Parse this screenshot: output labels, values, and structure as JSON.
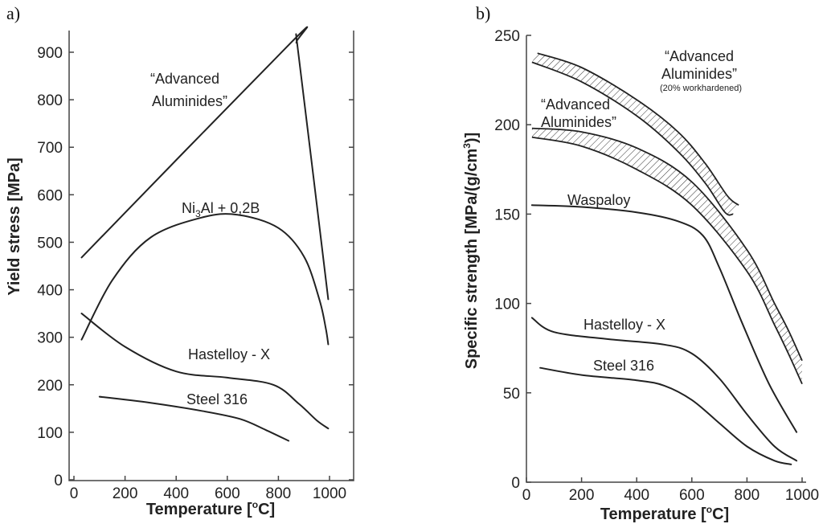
{
  "chart_data": [
    {
      "type": "line",
      "panel_label": "a)",
      "xlabel": "Temperature [°C]",
      "xlabel_main": "Temperature [",
      "xlabel_unit": "C]",
      "ylabel": "Yield stress [MPa]",
      "xlim": [
        0,
        1050
      ],
      "ylim": [
        0,
        950
      ],
      "xticks": [
        0,
        200,
        400,
        600,
        800,
        1000
      ],
      "yticks": [
        0,
        100,
        200,
        300,
        400,
        500,
        600,
        700,
        800,
        900
      ],
      "series": [
        {
          "name": "Advanced Aluminides",
          "label_lines": [
            "“Advanced",
            "Aluminides”"
          ],
          "points": [
            [
              30,
              468
            ],
            [
              845,
              918
            ],
            [
              870,
              920
            ],
            [
              880,
              890
            ],
            [
              995,
              380
            ]
          ]
        },
        {
          "name": "Ni3Al + 0,2B",
          "label_main": "Ni",
          "label_sub": "3",
          "label_rest": "Al + 0,2B",
          "points": [
            [
              30,
              295
            ],
            [
              150,
              420
            ],
            [
              300,
              510
            ],
            [
              500,
              552
            ],
            [
              640,
              558
            ],
            [
              800,
              530
            ],
            [
              900,
              470
            ],
            [
              960,
              380
            ],
            [
              985,
              320
            ],
            [
              995,
              285
            ]
          ]
        },
        {
          "name": "Hastelloy - X",
          "points": [
            [
              30,
              350
            ],
            [
              200,
              280
            ],
            [
              400,
              228
            ],
            [
              600,
              215
            ],
            [
              780,
              200
            ],
            [
              880,
              160
            ],
            [
              950,
              125
            ],
            [
              995,
              108
            ]
          ]
        },
        {
          "name": "Steel 316",
          "points": [
            [
              100,
              175
            ],
            [
              300,
              162
            ],
            [
              500,
              145
            ],
            [
              650,
              128
            ],
            [
              750,
              105
            ],
            [
              840,
              82
            ]
          ]
        }
      ]
    },
    {
      "type": "line",
      "panel_label": "b)",
      "xlabel": "Temperature [°C]",
      "xlabel_main": "Temperature [",
      "xlabel_unit": "C]",
      "ylabel": "Specific strength [MPa/(g/cm³)]",
      "ylabel_main": "Specific strength [MPa/(g/cm",
      "ylabel_sup": "3",
      "ylabel_end": ")]",
      "xlim": [
        0,
        1000
      ],
      "ylim": [
        0,
        250
      ],
      "xticks": [
        0,
        200,
        400,
        600,
        800,
        1000
      ],
      "yticks": [
        0,
        50,
        100,
        150,
        200,
        250
      ],
      "bands": [
        {
          "name": "Advanced Aluminides (20% workhardened)",
          "label_lines": [
            "“Advanced",
            "Aluminides”"
          ],
          "note": "(20% workhardened)",
          "upper": [
            [
              40,
              240
            ],
            [
              200,
              232
            ],
            [
              400,
              214
            ],
            [
              550,
              196
            ],
            [
              650,
              178
            ],
            [
              730,
              160
            ],
            [
              770,
              155
            ]
          ],
          "lower": [
            [
              20,
              235
            ],
            [
              200,
              224
            ],
            [
              400,
              205
            ],
            [
              550,
              185
            ],
            [
              650,
              167
            ],
            [
              720,
              151
            ],
            [
              750,
              150
            ]
          ]
        },
        {
          "name": "Advanced Aluminides",
          "label_lines": [
            "“Advanced",
            "Aluminides”"
          ],
          "upper": [
            [
              20,
              198
            ],
            [
              200,
              196
            ],
            [
              400,
              187
            ],
            [
              600,
              168
            ],
            [
              800,
              130
            ],
            [
              900,
              100
            ],
            [
              950,
              85
            ],
            [
              1000,
              68
            ]
          ],
          "lower": [
            [
              20,
              193
            ],
            [
              200,
              188
            ],
            [
              400,
              175
            ],
            [
              600,
              155
            ],
            [
              800,
              118
            ],
            [
              900,
              88
            ],
            [
              950,
              72
            ],
            [
              1000,
              55
            ]
          ]
        }
      ],
      "series": [
        {
          "name": "Waspaloy",
          "points": [
            [
              20,
              155
            ],
            [
              200,
              154
            ],
            [
              400,
              151
            ],
            [
              550,
              146
            ],
            [
              640,
              138
            ],
            [
              700,
              120
            ],
            [
              780,
              90
            ],
            [
              880,
              55
            ],
            [
              980,
              28
            ]
          ]
        },
        {
          "name": "Hastelloy - X",
          "points": [
            [
              20,
              92
            ],
            [
              100,
              84
            ],
            [
              300,
              80
            ],
            [
              500,
              77
            ],
            [
              600,
              72
            ],
            [
              700,
              58
            ],
            [
              800,
              38
            ],
            [
              900,
              20
            ],
            [
              980,
              12
            ]
          ]
        },
        {
          "name": "Steel 316",
          "points": [
            [
              50,
              64
            ],
            [
              200,
              60
            ],
            [
              400,
              57
            ],
            [
              500,
              54
            ],
            [
              600,
              46
            ],
            [
              700,
              33
            ],
            [
              800,
              20
            ],
            [
              900,
              12
            ],
            [
              960,
              10
            ]
          ]
        }
      ]
    }
  ]
}
